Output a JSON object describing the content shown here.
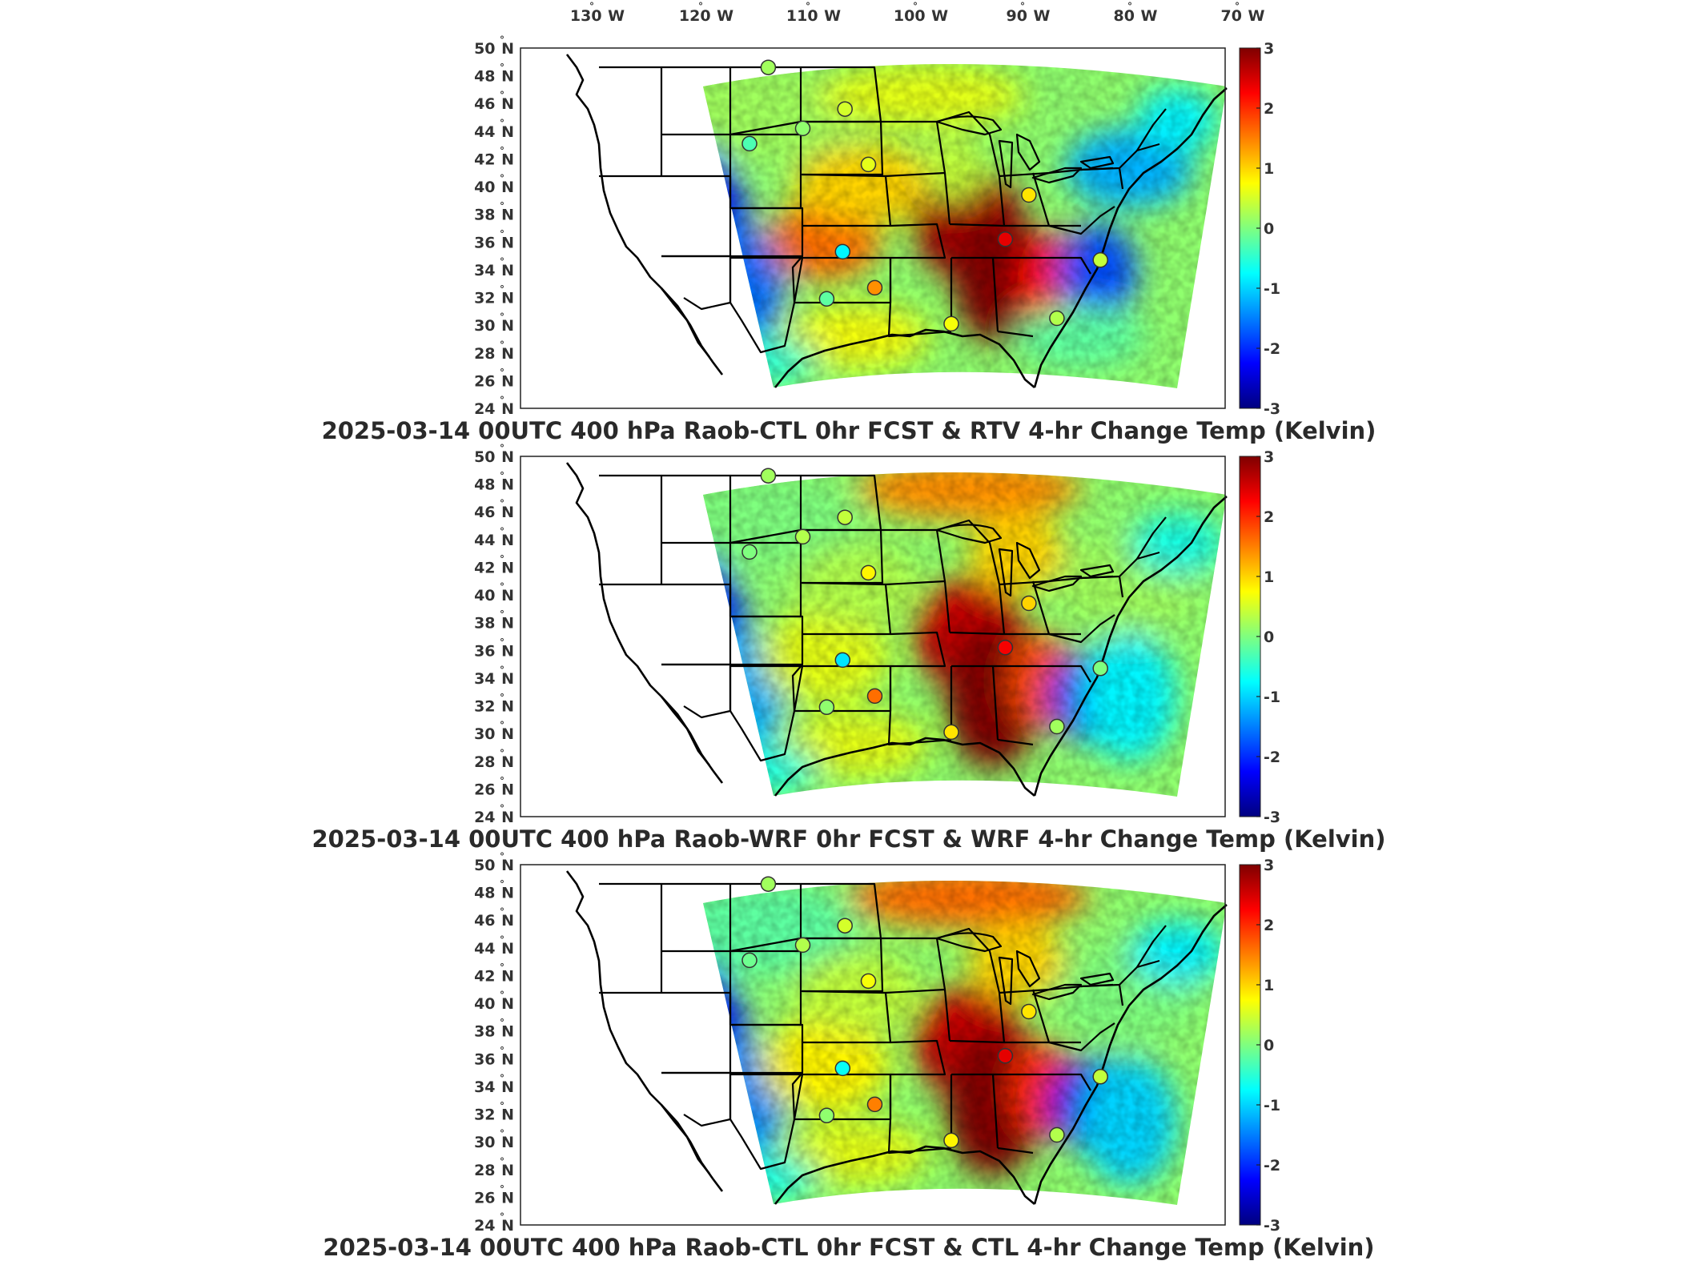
{
  "figure": {
    "lon_labels": [
      "130",
      "120",
      "110",
      "100",
      "90",
      "80",
      "70"
    ],
    "lon_suffix": "W",
    "lat_labels": [
      "50",
      "48",
      "46",
      "44",
      "42",
      "40",
      "38",
      "36",
      "34",
      "32",
      "30",
      "28",
      "26",
      "24"
    ],
    "lat_suffix": "N",
    "degree_symbol": "°",
    "colorbar": {
      "ticks": [
        "3",
        "2",
        "1",
        "0",
        "-1",
        "-2",
        "-3"
      ],
      "min": -3,
      "max": 3,
      "colors": [
        "#00007f",
        "#0000ff",
        "#007fff",
        "#00ffff",
        "#7fff7f",
        "#ffff00",
        "#ff7f00",
        "#ff0000",
        "#7f0000"
      ]
    },
    "colors": {
      "land": "#ffffff",
      "lines": "#000000",
      "frame": "#222222"
    }
  },
  "panels": [
    {
      "title": "2025-03-14 00UTC 400 hPa Raob-CTL 0hr FCST & RTV 4-hr Change Temp (Kelvin)",
      "stations": [
        {
          "lon": -107.7,
          "lat": 48.6,
          "value": 0.2
        },
        {
          "lon": -109.8,
          "lat": 43.1,
          "value": -0.3
        },
        {
          "lon": -104.8,
          "lat": 44.2,
          "value": 0.1
        },
        {
          "lon": -100.8,
          "lat": 45.6,
          "value": 0.5
        },
        {
          "lon": -98.9,
          "lat": 41.6,
          "value": 0.6
        },
        {
          "lon": -84.2,
          "lat": 39.4,
          "value": 0.9
        },
        {
          "lon": -86.6,
          "lat": 36.2,
          "value": 2.4
        },
        {
          "lon": -101.7,
          "lat": 35.3,
          "value": -0.8
        },
        {
          "lon": -103.4,
          "lat": 31.9,
          "value": -0.2
        },
        {
          "lon": -98.9,
          "lat": 32.7,
          "value": 1.4
        },
        {
          "lon": -92.0,
          "lat": 30.1,
          "value": 0.7
        },
        {
          "lon": -82.2,
          "lat": 30.5,
          "value": 0.3
        },
        {
          "lon": -77.9,
          "lat": 34.7,
          "value": 0.4
        }
      ]
    },
    {
      "title": "2025-03-14 00UTC 400 hPa Raob-WRF 0hr FCST & WRF 4-hr Change Temp (Kelvin)",
      "stations": [
        {
          "lon": -107.7,
          "lat": 48.6,
          "value": 0.2
        },
        {
          "lon": -109.8,
          "lat": 43.1,
          "value": 0.0
        },
        {
          "lon": -104.8,
          "lat": 44.2,
          "value": 0.3
        },
        {
          "lon": -100.8,
          "lat": 45.6,
          "value": 0.4
        },
        {
          "lon": -98.9,
          "lat": 41.6,
          "value": 0.8
        },
        {
          "lon": -84.2,
          "lat": 39.4,
          "value": 1.0
        },
        {
          "lon": -86.6,
          "lat": 36.2,
          "value": 2.3
        },
        {
          "lon": -101.7,
          "lat": 35.3,
          "value": -0.9
        },
        {
          "lon": -103.4,
          "lat": 31.9,
          "value": 0.1
        },
        {
          "lon": -98.9,
          "lat": 32.7,
          "value": 1.6
        },
        {
          "lon": -92.0,
          "lat": 30.1,
          "value": 0.9
        },
        {
          "lon": -82.2,
          "lat": 30.5,
          "value": 0.2
        },
        {
          "lon": -77.9,
          "lat": 34.7,
          "value": 0.0
        }
      ]
    },
    {
      "title": "2025-03-14 00UTC 400 hPa Raob-CTL 0hr FCST & CTL 4-hr Change Temp (Kelvin)",
      "stations": [
        {
          "lon": -107.7,
          "lat": 48.6,
          "value": 0.2
        },
        {
          "lon": -109.8,
          "lat": 43.1,
          "value": -0.1
        },
        {
          "lon": -104.8,
          "lat": 44.2,
          "value": 0.3
        },
        {
          "lon": -100.8,
          "lat": 45.6,
          "value": 0.5
        },
        {
          "lon": -98.9,
          "lat": 41.6,
          "value": 0.7
        },
        {
          "lon": -84.2,
          "lat": 39.4,
          "value": 0.9
        },
        {
          "lon": -86.6,
          "lat": 36.2,
          "value": 2.4
        },
        {
          "lon": -101.7,
          "lat": 35.3,
          "value": -0.7
        },
        {
          "lon": -103.4,
          "lat": 31.9,
          "value": 0.1
        },
        {
          "lon": -98.9,
          "lat": 32.7,
          "value": 1.5
        },
        {
          "lon": -92.0,
          "lat": 30.1,
          "value": 0.8
        },
        {
          "lon": -82.2,
          "lat": 30.5,
          "value": 0.3
        },
        {
          "lon": -77.9,
          "lat": 34.7,
          "value": 0.4
        }
      ]
    }
  ]
}
